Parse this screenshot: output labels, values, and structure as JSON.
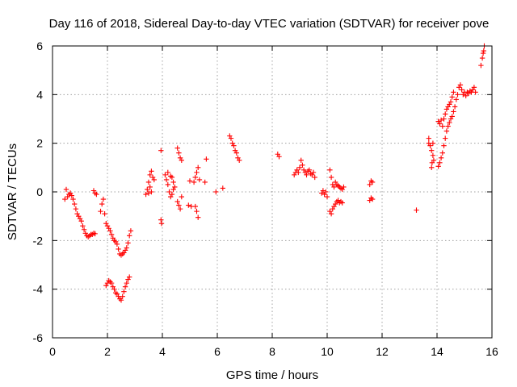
{
  "chart_data": {
    "type": "scatter",
    "title": "Day 116 of 2018, Sidereal Day-to-day VTEC variation (SDTVAR) for receiver pove",
    "xlabel": "GPS time / hours",
    "ylabel": "SDTVAR / TECUs",
    "xlim": [
      0,
      16
    ],
    "ylim": [
      -6,
      6
    ],
    "xticks": [
      "0",
      "2",
      "4",
      "6",
      "8",
      "10",
      "12",
      "14",
      "16"
    ],
    "yticks": [
      "-6",
      "-4",
      "-2",
      "0",
      "2",
      "4",
      "6"
    ],
    "grid": true,
    "marker": "+",
    "marker_color": "#ff0000",
    "series": [
      {
        "name": "SDTVAR",
        "points": [
          [
            0.45,
            -0.3
          ],
          [
            0.5,
            0.1
          ],
          [
            0.55,
            -0.2
          ],
          [
            0.6,
            -0.1
          ],
          [
            0.65,
            -0.05
          ],
          [
            0.7,
            -0.15
          ],
          [
            0.75,
            -0.3
          ],
          [
            0.8,
            -0.5
          ],
          [
            0.85,
            -0.7
          ],
          [
            0.9,
            -0.9
          ],
          [
            0.95,
            -1.0
          ],
          [
            1.0,
            -1.1
          ],
          [
            1.05,
            -1.2
          ],
          [
            1.1,
            -1.4
          ],
          [
            1.15,
            -1.55
          ],
          [
            1.2,
            -1.7
          ],
          [
            1.25,
            -1.8
          ],
          [
            1.3,
            -1.85
          ],
          [
            1.35,
            -1.8
          ],
          [
            1.4,
            -1.75
          ],
          [
            1.45,
            -1.75
          ],
          [
            1.5,
            -1.7
          ],
          [
            1.55,
            -1.72
          ],
          [
            1.5,
            0.05
          ],
          [
            1.55,
            -0.05
          ],
          [
            1.6,
            -0.1
          ],
          [
            1.75,
            -0.8
          ],
          [
            1.8,
            -0.5
          ],
          [
            1.85,
            -0.3
          ],
          [
            1.9,
            -0.9
          ],
          [
            1.95,
            -1.3
          ],
          [
            2.0,
            -1.4
          ],
          [
            2.05,
            -1.5
          ],
          [
            2.1,
            -1.6
          ],
          [
            2.15,
            -1.75
          ],
          [
            2.2,
            -1.9
          ],
          [
            2.25,
            -2.0
          ],
          [
            2.3,
            -2.05
          ],
          [
            2.35,
            -2.15
          ],
          [
            2.4,
            -2.35
          ],
          [
            2.45,
            -2.55
          ],
          [
            2.5,
            -2.6
          ],
          [
            2.55,
            -2.55
          ],
          [
            2.6,
            -2.5
          ],
          [
            2.65,
            -2.4
          ],
          [
            2.7,
            -2.3
          ],
          [
            2.75,
            -2.1
          ],
          [
            2.8,
            -1.8
          ],
          [
            2.85,
            -1.6
          ],
          [
            1.95,
            -3.85
          ],
          [
            2.0,
            -3.75
          ],
          [
            2.05,
            -3.65
          ],
          [
            2.1,
            -3.7
          ],
          [
            2.15,
            -3.75
          ],
          [
            2.2,
            -3.9
          ],
          [
            2.25,
            -4.0
          ],
          [
            2.3,
            -4.15
          ],
          [
            2.35,
            -4.2
          ],
          [
            2.4,
            -4.3
          ],
          [
            2.45,
            -4.4
          ],
          [
            2.5,
            -4.45
          ],
          [
            2.55,
            -4.3
          ],
          [
            2.6,
            -4.1
          ],
          [
            2.65,
            -3.9
          ],
          [
            2.7,
            -3.75
          ],
          [
            2.75,
            -3.6
          ],
          [
            2.8,
            -3.5
          ],
          [
            3.4,
            -0.1
          ],
          [
            3.45,
            0.1
          ],
          [
            3.5,
            0.4
          ],
          [
            3.55,
            0.7
          ],
          [
            3.6,
            0.85
          ],
          [
            3.65,
            0.6
          ],
          [
            3.7,
            0.5
          ],
          [
            3.5,
            -0.05
          ],
          [
            3.55,
            0.2
          ],
          [
            3.6,
            0.0
          ],
          [
            3.95,
            1.7
          ],
          [
            3.95,
            -1.15
          ],
          [
            3.97,
            -1.3
          ],
          [
            4.1,
            0.7
          ],
          [
            4.15,
            0.5
          ],
          [
            4.2,
            0.3
          ],
          [
            4.25,
            0.0
          ],
          [
            4.3,
            -0.2
          ],
          [
            4.35,
            0.6
          ],
          [
            4.4,
            0.4
          ],
          [
            4.45,
            0.2
          ],
          [
            4.2,
            0.8
          ],
          [
            4.3,
            0.65
          ],
          [
            4.35,
            -0.1
          ],
          [
            4.4,
            0.1
          ],
          [
            4.55,
            1.8
          ],
          [
            4.6,
            1.6
          ],
          [
            4.65,
            1.4
          ],
          [
            4.7,
            1.3
          ],
          [
            4.55,
            -0.4
          ],
          [
            4.6,
            -0.55
          ],
          [
            4.65,
            -0.7
          ],
          [
            4.7,
            -0.2
          ],
          [
            4.95,
            -0.55
          ],
          [
            5.05,
            -0.6
          ],
          [
            5.0,
            0.45
          ],
          [
            5.15,
            0.4
          ],
          [
            5.2,
            0.6
          ],
          [
            5.25,
            0.8
          ],
          [
            5.3,
            1.0
          ],
          [
            5.35,
            0.5
          ],
          [
            5.2,
            -0.6
          ],
          [
            5.25,
            -0.8
          ],
          [
            5.3,
            -1.05
          ],
          [
            5.55,
            0.4
          ],
          [
            5.6,
            1.35
          ],
          [
            5.95,
            0.0
          ],
          [
            6.2,
            0.15
          ],
          [
            6.45,
            2.3
          ],
          [
            6.5,
            2.2
          ],
          [
            6.55,
            2.0
          ],
          [
            6.6,
            1.9
          ],
          [
            6.65,
            1.7
          ],
          [
            6.7,
            1.6
          ],
          [
            6.75,
            1.4
          ],
          [
            6.8,
            1.3
          ],
          [
            8.2,
            1.55
          ],
          [
            8.25,
            1.45
          ],
          [
            8.8,
            0.7
          ],
          [
            8.85,
            0.8
          ],
          [
            8.9,
            0.9
          ],
          [
            8.95,
            0.8
          ],
          [
            9.0,
            1.0
          ],
          [
            9.05,
            1.3
          ],
          [
            9.1,
            1.1
          ],
          [
            9.15,
            0.9
          ],
          [
            9.2,
            0.8
          ],
          [
            9.25,
            0.7
          ],
          [
            9.3,
            0.85
          ],
          [
            9.35,
            0.9
          ],
          [
            9.4,
            0.75
          ],
          [
            9.45,
            0.7
          ],
          [
            9.5,
            0.8
          ],
          [
            9.55,
            0.6
          ],
          [
            9.8,
            -0.05
          ],
          [
            9.85,
            0.05
          ],
          [
            9.9,
            -0.1
          ],
          [
            9.95,
            0.0
          ],
          [
            10.0,
            -0.2
          ],
          [
            10.1,
            -0.8
          ],
          [
            10.15,
            -0.9
          ],
          [
            10.2,
            -0.7
          ],
          [
            10.25,
            -0.6
          ],
          [
            10.3,
            -0.5
          ],
          [
            10.35,
            -0.4
          ],
          [
            10.4,
            -0.35
          ],
          [
            10.45,
            -0.45
          ],
          [
            10.5,
            -0.4
          ],
          [
            10.55,
            -0.45
          ],
          [
            10.1,
            0.9
          ],
          [
            10.15,
            0.6
          ],
          [
            10.2,
            0.3
          ],
          [
            10.25,
            0.2
          ],
          [
            10.3,
            0.4
          ],
          [
            10.35,
            0.3
          ],
          [
            10.4,
            0.25
          ],
          [
            10.45,
            0.2
          ],
          [
            10.5,
            0.15
          ],
          [
            10.55,
            0.1
          ],
          [
            10.6,
            0.2
          ],
          [
            11.55,
            -0.35
          ],
          [
            11.6,
            -0.25
          ],
          [
            11.65,
            -0.3
          ],
          [
            11.55,
            0.3
          ],
          [
            11.6,
            0.45
          ],
          [
            11.65,
            0.4
          ],
          [
            13.25,
            -0.75
          ],
          [
            13.7,
            2.0
          ],
          [
            13.75,
            1.9
          ],
          [
            13.8,
            1.7
          ],
          [
            13.85,
            1.5
          ],
          [
            13.7,
            2.2
          ],
          [
            13.8,
            1.0
          ],
          [
            13.82,
            1.2
          ],
          [
            13.85,
            2.0
          ],
          [
            13.88,
            1.3
          ],
          [
            14.05,
            1.05
          ],
          [
            14.1,
            1.2
          ],
          [
            14.15,
            1.4
          ],
          [
            14.2,
            1.6
          ],
          [
            14.25,
            1.9
          ],
          [
            14.3,
            2.2
          ],
          [
            14.35,
            2.5
          ],
          [
            14.4,
            2.7
          ],
          [
            14.45,
            2.85
          ],
          [
            14.5,
            3.0
          ],
          [
            14.55,
            3.1
          ],
          [
            14.6,
            3.3
          ],
          [
            14.65,
            3.5
          ],
          [
            14.7,
            3.8
          ],
          [
            14.75,
            4.0
          ],
          [
            14.8,
            4.3
          ],
          [
            14.85,
            4.4
          ],
          [
            14.9,
            4.2
          ],
          [
            14.05,
            2.9
          ],
          [
            14.1,
            2.8
          ],
          [
            14.15,
            2.95
          ],
          [
            14.2,
            2.7
          ],
          [
            14.25,
            3.0
          ],
          [
            14.3,
            3.2
          ],
          [
            14.35,
            3.4
          ],
          [
            14.4,
            3.5
          ],
          [
            14.45,
            3.6
          ],
          [
            14.5,
            3.7
          ],
          [
            14.55,
            3.9
          ],
          [
            14.6,
            4.1
          ],
          [
            14.95,
            4.0
          ],
          [
            15.0,
            4.1
          ],
          [
            15.05,
            3.95
          ],
          [
            15.1,
            4.1
          ],
          [
            15.15,
            4.05
          ],
          [
            15.2,
            4.15
          ],
          [
            15.25,
            4.1
          ],
          [
            15.3,
            4.2
          ],
          [
            15.35,
            4.3
          ],
          [
            15.4,
            4.1
          ],
          [
            15.6,
            5.2
          ],
          [
            15.65,
            5.5
          ],
          [
            15.7,
            5.8
          ],
          [
            15.72,
            6.0
          ],
          [
            15.68,
            5.7
          ]
        ]
      }
    ]
  }
}
